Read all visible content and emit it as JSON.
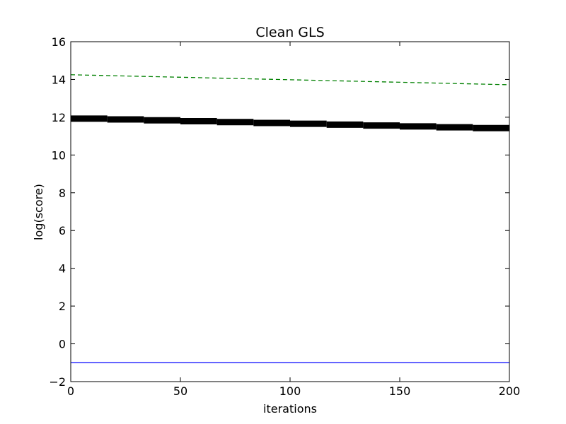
{
  "chart_data": {
    "type": "line",
    "title": "Clean GLS",
    "xlabel": "iterations",
    "ylabel": "log(score)",
    "xlim": [
      0,
      200
    ],
    "ylim": [
      -2,
      16
    ],
    "xticks": [
      "0",
      "50",
      "100",
      "150",
      "200"
    ],
    "yticks": [
      "−2",
      "0",
      "2",
      "4",
      "6",
      "8",
      "10",
      "12",
      "14",
      "16"
    ],
    "grid": false,
    "series": [
      {
        "color": "#008000",
        "style": "dashed",
        "x": [
          0,
          200
        ],
        "y": [
          14.25,
          13.72
        ]
      },
      {
        "color": "#000000",
        "style": "thick-stepped",
        "x": [
          0,
          200
        ],
        "y": [
          11.95,
          11.4
        ]
      },
      {
        "color": "#0000ff",
        "style": "solid",
        "x": [
          0,
          200
        ],
        "y": [
          -1.0,
          -1.0
        ]
      }
    ]
  }
}
